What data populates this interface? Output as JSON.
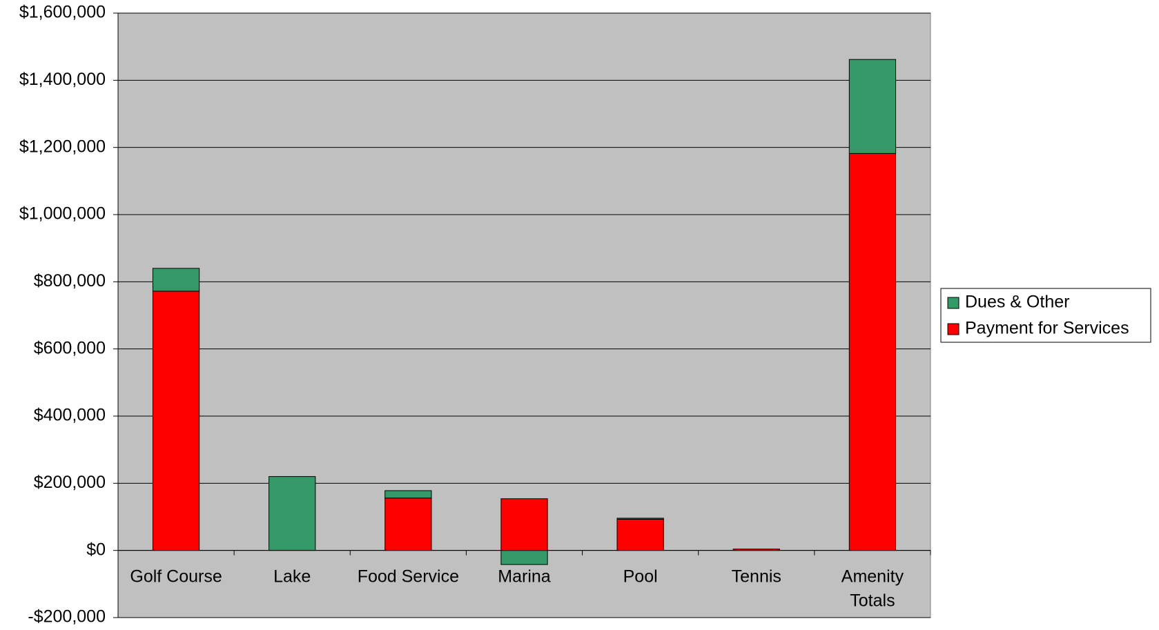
{
  "chart_data": {
    "type": "stacked_bar",
    "categories": [
      "Golf Course",
      "Lake",
      "Food Service",
      "Marina",
      "Pool",
      "Tennis",
      "Amenity Totals"
    ],
    "series": [
      {
        "name": "Payment for Services",
        "color": "#ff0000",
        "values": [
          772000,
          0,
          156000,
          154000,
          93000,
          4000,
          1182000
        ]
      },
      {
        "name": "Dues & Other",
        "color": "#339966",
        "values": [
          68000,
          220000,
          22000,
          -42000,
          3000,
          0,
          280000
        ]
      }
    ],
    "ylim": [
      -200000,
      1600000
    ],
    "yticks": [
      {
        "value": -200000,
        "label": "-$200,000"
      },
      {
        "value": 0,
        "label": "$0"
      },
      {
        "value": 200000,
        "label": "$200,000"
      },
      {
        "value": 400000,
        "label": "$400,000"
      },
      {
        "value": 600000,
        "label": "$600,000"
      },
      {
        "value": 800000,
        "label": "$800,000"
      },
      {
        "value": 1000000,
        "label": "$1,000,000"
      },
      {
        "value": 1200000,
        "label": "$1,200,000"
      },
      {
        "value": 1400000,
        "label": "$1,400,000"
      },
      {
        "value": 1600000,
        "label": "$1,600,000"
      }
    ],
    "grid": true,
    "legend": "right"
  }
}
